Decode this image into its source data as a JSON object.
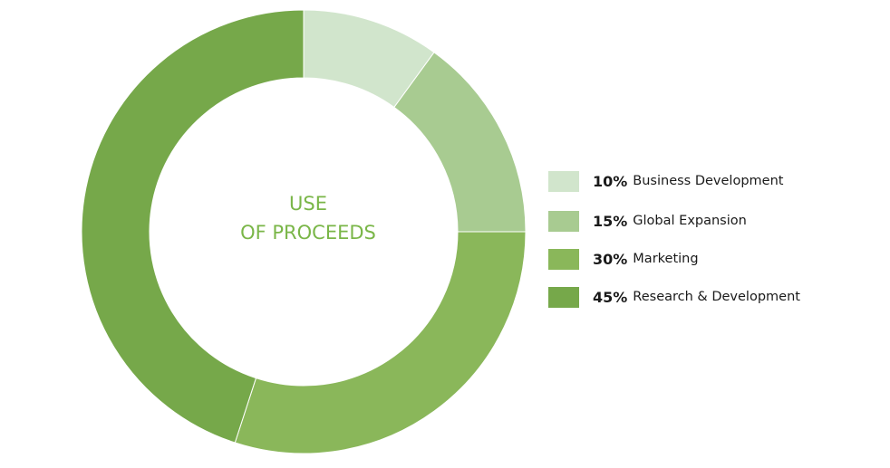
{
  "chart_data": {
    "type": "pie",
    "title": "",
    "center_text": [
      "USE",
      "OF PROCEEDS"
    ],
    "legend_position": "right",
    "slices": [
      {
        "pct_label": "10%",
        "name": "Business Development",
        "value": 10,
        "color": "#d1e5cc"
      },
      {
        "pct_label": "15%",
        "name": "Global Expansion",
        "value": 15,
        "color": "#a8cb91"
      },
      {
        "pct_label": "30%",
        "name": "Marketing",
        "value": 30,
        "color": "#8ab75a"
      },
      {
        "pct_label": "45%",
        "name": "Research & Development",
        "value": 45,
        "color": "#76a84a"
      }
    ]
  },
  "colors": {
    "center_text": "#7ab648"
  }
}
